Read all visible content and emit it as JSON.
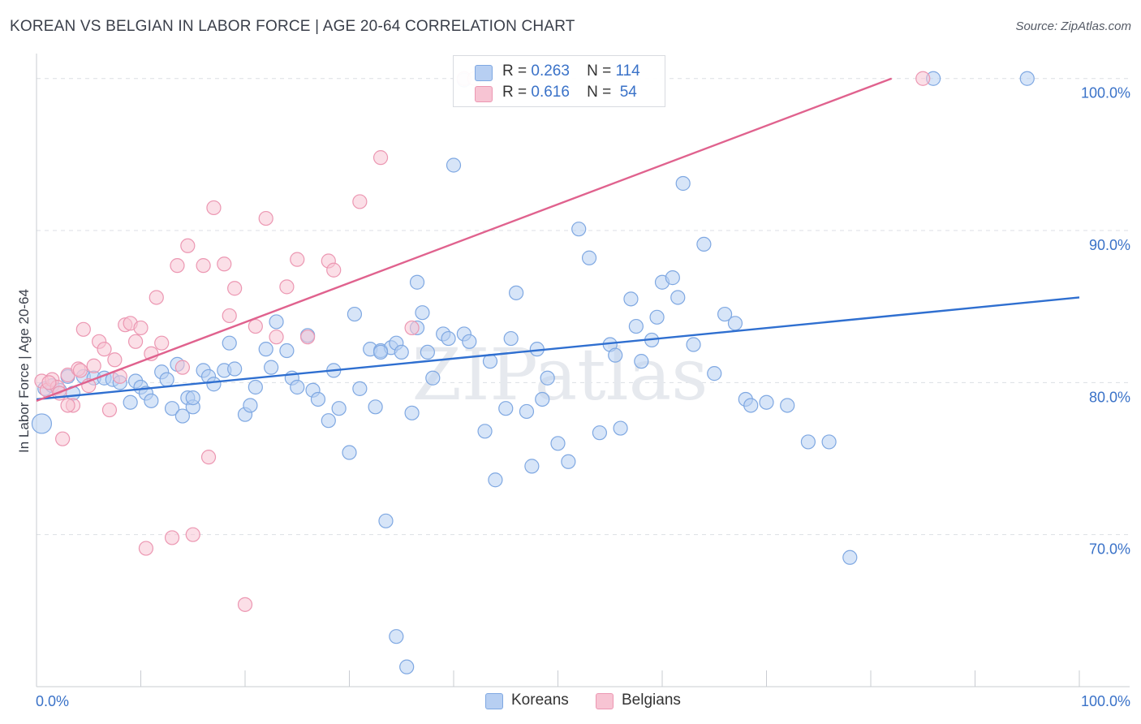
{
  "title": "KOREAN VS BELGIAN IN LABOR FORCE | AGE 20-64 CORRELATION CHART",
  "source": "Source: ZipAtlas.com",
  "watermark": "ZIPatlas",
  "legend": {
    "rows": [
      {
        "r_label": "R =",
        "r_value": "0.263",
        "n_label": "N =",
        "n_value": "114"
      },
      {
        "r_label": "R =",
        "r_value": "0.616",
        "n_label": "N =",
        "n_value": "54"
      }
    ]
  },
  "bottom_legend": {
    "koreans": "Koreans",
    "belgians": "Belgians"
  },
  "colors": {
    "koreans_fill": "#b7cff2",
    "koreans_stroke": "#7fa8e2",
    "koreans_line": "#2f6fd0",
    "belgians_fill": "#f7c4d3",
    "belgians_stroke": "#ec97b2",
    "belgians_line": "#e0628e",
    "grid": "#dcdfe4",
    "axis_label": "#3a72c8"
  },
  "chart_data": {
    "type": "scatter",
    "title": "KOREAN VS BELGIAN IN LABOR FORCE | AGE 20-64 CORRELATION CHART",
    "xlabel": "",
    "ylabel": "In Labor Force | Age 20-64",
    "xlim": [
      0,
      100
    ],
    "ylim": [
      60,
      101
    ],
    "x_tick_labels": [
      "0.0%",
      "100.0%"
    ],
    "y_ticks": [
      70,
      80,
      90,
      100
    ],
    "y_tick_labels": [
      "70.0%",
      "80.0%",
      "90.0%",
      "100.0%"
    ],
    "grid": true,
    "legend_position": "top-center",
    "series": [
      {
        "name": "Koreans",
        "R": 0.263,
        "N": 114,
        "trend": {
          "x": [
            0,
            100
          ],
          "y": [
            78.9,
            85.6
          ]
        },
        "points": [
          [
            0.5,
            77.3
          ],
          [
            0.8,
            79.6
          ],
          [
            1.5,
            79.8
          ],
          [
            2.2,
            79.5
          ],
          [
            3,
            80.4
          ],
          [
            3.5,
            79.3
          ],
          [
            4.5,
            80.4
          ],
          [
            5.5,
            80.3
          ],
          [
            6.5,
            80.3
          ],
          [
            7.3,
            80.2
          ],
          [
            8,
            80
          ],
          [
            9,
            78.7
          ],
          [
            9.5,
            80.1
          ],
          [
            10,
            79.7
          ],
          [
            10.5,
            79.3
          ],
          [
            11,
            78.8
          ],
          [
            12,
            80.7
          ],
          [
            12.5,
            80.2
          ],
          [
            13,
            78.3
          ],
          [
            13.5,
            81.2
          ],
          [
            14,
            77.8
          ],
          [
            14.5,
            79
          ],
          [
            15,
            78.4
          ],
          [
            16,
            80.8
          ],
          [
            16.5,
            80.4
          ],
          [
            17,
            79.9
          ],
          [
            18,
            80.8
          ],
          [
            18.5,
            82.6
          ],
          [
            19,
            80.9
          ],
          [
            20,
            77.9
          ],
          [
            20.5,
            78.5
          ],
          [
            21,
            79.7
          ],
          [
            22,
            82.2
          ],
          [
            22.5,
            81
          ],
          [
            23,
            84
          ],
          [
            24,
            82.1
          ],
          [
            24.5,
            80.3
          ],
          [
            25,
            79.7
          ],
          [
            26,
            83.1
          ],
          [
            26.5,
            79.5
          ],
          [
            27,
            78.9
          ],
          [
            28,
            77.5
          ],
          [
            28.5,
            80.8
          ],
          [
            29,
            78.3
          ],
          [
            30,
            75.4
          ],
          [
            30.5,
            84.5
          ],
          [
            31,
            79.6
          ],
          [
            32,
            82.2
          ],
          [
            32.5,
            78.4
          ],
          [
            33,
            82.1
          ],
          [
            34,
            82.3
          ],
          [
            34.5,
            82.6
          ],
          [
            35,
            82
          ],
          [
            36,
            78
          ],
          [
            36.5,
            83.6
          ],
          [
            37,
            84.6
          ],
          [
            37.5,
            82
          ],
          [
            38,
            80.3
          ],
          [
            39,
            83.2
          ],
          [
            39.5,
            82.9
          ],
          [
            40,
            94.3
          ],
          [
            41,
            83.2
          ],
          [
            41.5,
            82.7
          ],
          [
            43,
            76.8
          ],
          [
            43.5,
            81.4
          ],
          [
            44,
            73.6
          ],
          [
            45,
            78.3
          ],
          [
            45.5,
            82.9
          ],
          [
            46,
            85.9
          ],
          [
            47,
            78.1
          ],
          [
            47.5,
            74.5
          ],
          [
            48,
            82.2
          ],
          [
            48.5,
            78.9
          ],
          [
            49,
            80.3
          ],
          [
            50,
            76
          ],
          [
            51,
            74.8
          ],
          [
            52,
            90.1
          ],
          [
            53,
            88.2
          ],
          [
            54,
            76.7
          ],
          [
            55,
            82.5
          ],
          [
            55.5,
            81.8
          ],
          [
            56,
            77
          ],
          [
            57,
            85.5
          ],
          [
            57.5,
            83.7
          ],
          [
            58,
            81.4
          ],
          [
            59,
            82.8
          ],
          [
            59.5,
            84.3
          ],
          [
            60,
            86.6
          ],
          [
            61,
            86.9
          ],
          [
            61.5,
            85.6
          ],
          [
            62,
            93.1
          ],
          [
            63,
            82.5
          ],
          [
            64,
            89.1
          ],
          [
            65,
            80.6
          ],
          [
            66,
            84.5
          ],
          [
            67,
            83.9
          ],
          [
            68,
            78.9
          ],
          [
            68.5,
            78.5
          ],
          [
            70,
            78.7
          ],
          [
            72,
            78.5
          ],
          [
            74,
            76.1
          ],
          [
            76,
            76.1
          ],
          [
            78,
            68.5
          ],
          [
            33.5,
            70.9
          ],
          [
            34.5,
            63.3
          ],
          [
            35.5,
            61.3
          ],
          [
            41,
            99.9
          ],
          [
            86,
            100
          ],
          [
            95,
            100
          ],
          [
            15,
            79
          ],
          [
            33,
            82
          ],
          [
            36.5,
            86.6
          ]
        ]
      },
      {
        "name": "Belgians",
        "R": 0.616,
        "N": 54,
        "trend": {
          "x": [
            0,
            82
          ],
          "y": [
            78.8,
            100
          ]
        },
        "points": [
          [
            0.5,
            80.1
          ],
          [
            1,
            79.5
          ],
          [
            1.5,
            80.2
          ],
          [
            2,
            79.7
          ],
          [
            2.5,
            76.3
          ],
          [
            3,
            80.5
          ],
          [
            3.5,
            78.5
          ],
          [
            4,
            80.9
          ],
          [
            4.5,
            83.5
          ],
          [
            5,
            79.8
          ],
          [
            5.5,
            81.1
          ],
          [
            6,
            82.7
          ],
          [
            6.5,
            82.2
          ],
          [
            7,
            78.2
          ],
          [
            8,
            80.4
          ],
          [
            8.5,
            83.8
          ],
          [
            9,
            83.9
          ],
          [
            9.5,
            82.7
          ],
          [
            10,
            83.6
          ],
          [
            10.5,
            69.1
          ],
          [
            11,
            81.9
          ],
          [
            11.5,
            85.6
          ],
          [
            12,
            82.6
          ],
          [
            13,
            69.8
          ],
          [
            13.5,
            87.7
          ],
          [
            14,
            81
          ],
          [
            14.5,
            89
          ],
          [
            15,
            70
          ],
          [
            16,
            87.7
          ],
          [
            16.5,
            75.1
          ],
          [
            17,
            91.5
          ],
          [
            18,
            87.8
          ],
          [
            18.5,
            84.4
          ],
          [
            19,
            86.2
          ],
          [
            20,
            65.4
          ],
          [
            21,
            83.7
          ],
          [
            22,
            90.8
          ],
          [
            23,
            83
          ],
          [
            24,
            86.3
          ],
          [
            25,
            88.1
          ],
          [
            26,
            83
          ],
          [
            28,
            88
          ],
          [
            28.5,
            87.4
          ],
          [
            31,
            91.9
          ],
          [
            33,
            94.8
          ],
          [
            36,
            83.6
          ],
          [
            41,
            100
          ],
          [
            42,
            100
          ],
          [
            85,
            100
          ],
          [
            3,
            78.5
          ],
          [
            2.2,
            79.3
          ],
          [
            7.5,
            81.5
          ],
          [
            1.2,
            80
          ],
          [
            4.2,
            80.8
          ]
        ]
      }
    ]
  }
}
